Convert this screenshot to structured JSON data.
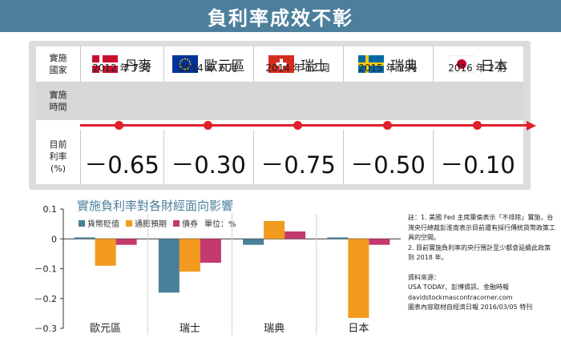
{
  "title": "負利率成效不彰",
  "table": {
    "row_labels": {
      "country": "實施國家",
      "time": "實施時間",
      "rate": "目前利率(%)"
    },
    "countries": [
      {
        "name": "丹麥",
        "flag": "denmark-flag",
        "date": "2012 年 7 月",
        "rate": "－0.65"
      },
      {
        "name": "歐元區",
        "flag": "eu-flag",
        "date": "2014 年 6 月",
        "rate": "－0.30"
      },
      {
        "name": "瑞士",
        "flag": "switzerland-flag",
        "date": "2014 年 12 月",
        "rate": "－0.75"
      },
      {
        "name": "瑞典",
        "flag": "sweden-flag",
        "date": "2015 年 2 月",
        "rate": "－0.50"
      },
      {
        "name": "日本",
        "flag": "japan-flag",
        "date": "2016 年 2 月",
        "rate": "－0.10"
      }
    ]
  },
  "chart_data": {
    "type": "bar",
    "title": "實施負利率對各財經面向影響",
    "unit": "單位：%",
    "categories": [
      "歐元區",
      "瑞士",
      "瑞典",
      "日本"
    ],
    "series": [
      {
        "name": "貨幣貶值",
        "color": "#4a7f9a",
        "values": [
          0.005,
          -0.18,
          -0.02,
          0.005
        ]
      },
      {
        "name": "通膨預期",
        "color": "#f29a1e",
        "values": [
          -0.09,
          -0.11,
          0.06,
          -0.265
        ]
      },
      {
        "name": "債券",
        "color": "#c33a6e",
        "values": [
          -0.02,
          -0.08,
          0.025,
          -0.02
        ]
      }
    ],
    "ylim": [
      -0.3,
      0.1
    ],
    "yticks": [
      "0.1",
      "0",
      "－0.1",
      "－0.2",
      "－0.3"
    ],
    "ytick_values": [
      0.1,
      0,
      -0.1,
      -0.2,
      -0.3
    ],
    "grid": false,
    "legend_position": "top-left"
  },
  "notes": {
    "note1": "註：1. 美國 Fed 主席葉倫表示「不排除」實施，台灣央行總裁彭淮南表示目前還有採行傳統貨幣政策工具的空間。",
    "note2": "2. 目前實施負利率的央行預計至少都會延續此政策到 2018 年。",
    "source_title": "資料來源：",
    "source1": "USA TODAY、彭博資訊、金融時報",
    "source2": "davidstockmascontracorner.com",
    "source3": "圖表內容取材自經濟日報 2016/03/05 特刊"
  }
}
